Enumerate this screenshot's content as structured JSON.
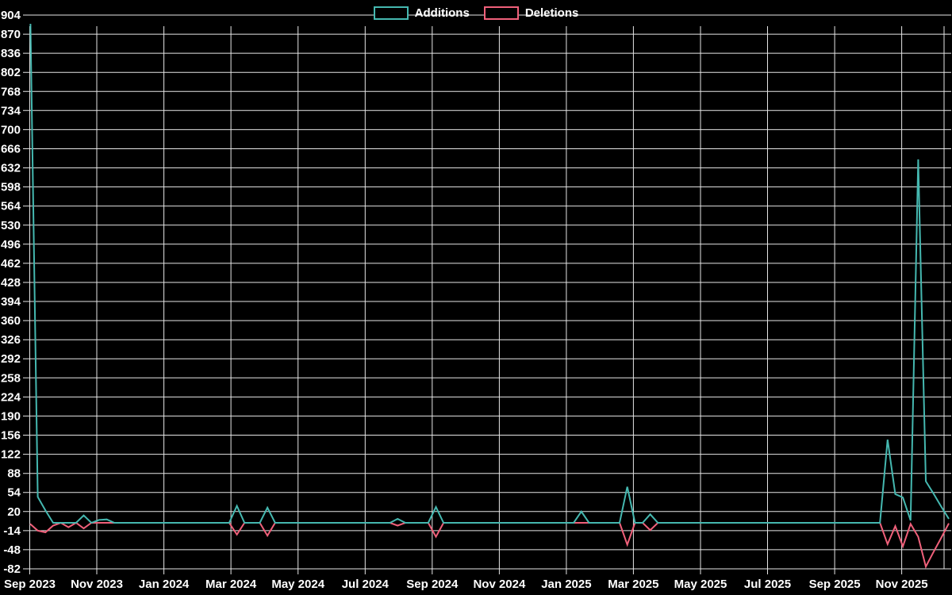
{
  "page": {
    "background": "#000000",
    "text_color": "#ffffff",
    "grid_color": "#e6e6e6"
  },
  "legend": {
    "items": [
      {
        "label": "Additions",
        "color": "#45b8b0"
      },
      {
        "label": "Deletions",
        "color": "#f0607a"
      }
    ]
  },
  "chart_data": {
    "type": "line",
    "title": "",
    "xlabel": "",
    "ylabel": "",
    "legend_position": "top-center",
    "grid": true,
    "x_unit": "week",
    "x_tick_labels": [
      "Sep 2023",
      "Nov 2023",
      "Jan 2024",
      "Mar 2024",
      "May 2024",
      "Jul 2024",
      "Sep 2024",
      "Nov 2024",
      "Jan 2025",
      "Mar 2025",
      "May 2025",
      "Jul 2025",
      "Sep 2025",
      "Nov 2025"
    ],
    "y_axis": {
      "min": -82,
      "max": 904,
      "step": 34
    },
    "y_tick_labels": [
      904,
      870,
      836,
      802,
      768,
      734,
      700,
      666,
      632,
      598,
      564,
      530,
      496,
      462,
      428,
      394,
      360,
      326,
      292,
      258,
      224,
      190,
      156,
      122,
      88,
      54,
      20,
      -14,
      -48,
      -82
    ],
    "series": [
      {
        "name": "Additions",
        "color": "#45b8b0",
        "values": [
          925,
          46,
          22,
          0,
          0,
          0,
          0,
          13,
          0,
          5,
          6,
          0,
          0,
          0,
          0,
          0,
          0,
          0,
          0,
          0,
          0,
          0,
          0,
          0,
          0,
          0,
          0,
          30,
          0,
          0,
          0,
          27,
          0,
          0,
          0,
          0,
          0,
          0,
          0,
          0,
          0,
          0,
          0,
          0,
          0,
          0,
          0,
          0,
          7,
          0,
          0,
          0,
          0,
          28,
          0,
          0,
          0,
          0,
          0,
          0,
          0,
          0,
          0,
          0,
          0,
          0,
          0,
          0,
          0,
          0,
          0,
          0,
          20,
          0,
          0,
          0,
          0,
          0,
          64,
          0,
          0,
          15,
          0,
          0,
          0,
          0,
          0,
          0,
          0,
          0,
          0,
          0,
          0,
          0,
          0,
          0,
          0,
          0,
          0,
          0,
          0,
          0,
          0,
          0,
          0,
          0,
          0,
          0,
          0,
          0,
          0,
          0,
          148,
          51,
          45,
          4,
          647,
          74,
          52,
          29,
          7
        ]
      },
      {
        "name": "Deletions",
        "color": "#f0607a",
        "values": [
          -2,
          -14,
          -17,
          -5,
          0,
          -8,
          0,
          -10,
          0,
          0,
          0,
          0,
          0,
          0,
          0,
          0,
          0,
          0,
          0,
          0,
          0,
          0,
          0,
          0,
          0,
          0,
          0,
          -21,
          0,
          0,
          0,
          -23,
          0,
          0,
          0,
          0,
          0,
          0,
          0,
          0,
          0,
          0,
          0,
          0,
          0,
          0,
          0,
          0,
          -5,
          0,
          0,
          0,
          0,
          -25,
          0,
          0,
          0,
          0,
          0,
          0,
          0,
          0,
          0,
          0,
          0,
          0,
          0,
          0,
          0,
          0,
          0,
          0,
          0,
          0,
          0,
          0,
          0,
          0,
          -39,
          0,
          0,
          -13,
          0,
          0,
          0,
          0,
          0,
          0,
          0,
          0,
          0,
          0,
          0,
          0,
          0,
          0,
          0,
          0,
          0,
          0,
          0,
          0,
          0,
          0,
          0,
          0,
          0,
          0,
          0,
          0,
          0,
          0,
          -38,
          -6,
          -42,
          -2,
          -25,
          -78,
          -52,
          -27,
          -1
        ]
      }
    ]
  }
}
